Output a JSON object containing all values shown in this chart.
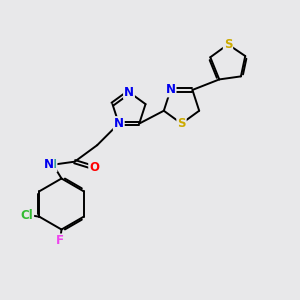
{
  "background_color": "#e8e8ea",
  "bond_color": "#000000",
  "atom_colors": {
    "N": "#0000ee",
    "S": "#ccaa00",
    "O": "#ff0000",
    "Cl": "#33bb33",
    "F": "#ee44ee",
    "H": "#008888",
    "C": "#000000"
  },
  "figsize": [
    3.0,
    3.0
  ],
  "dpi": 100
}
